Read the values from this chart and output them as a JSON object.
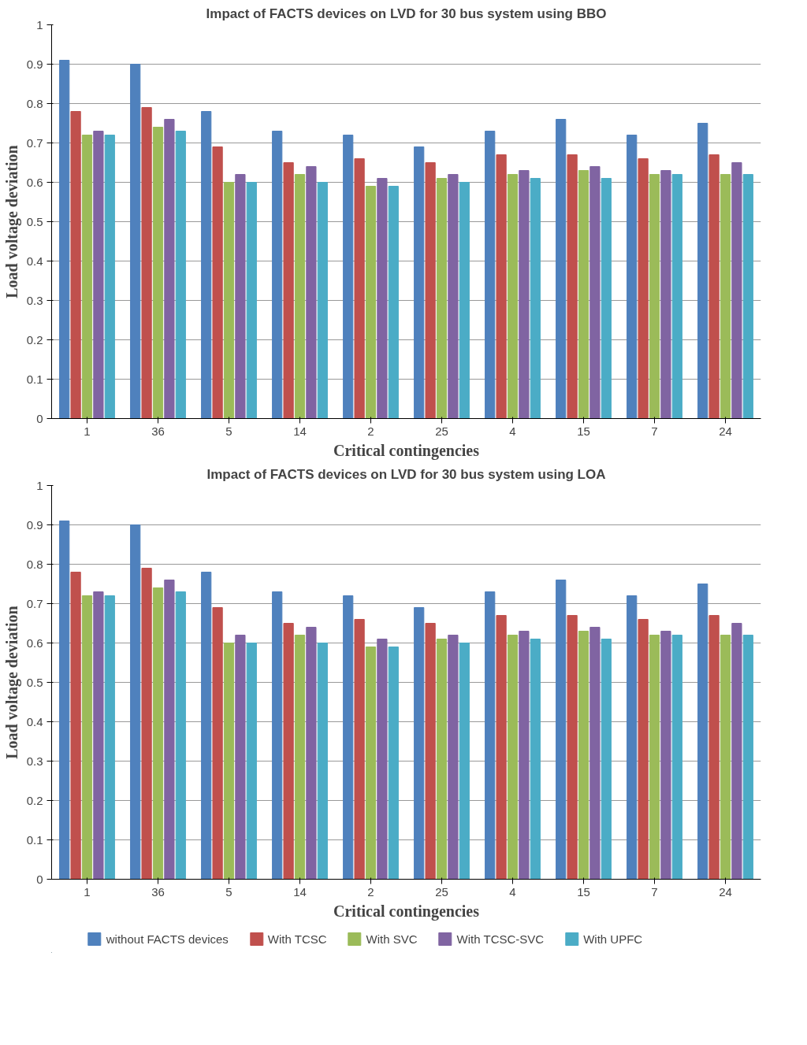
{
  "chart_data": [
    {
      "type": "bar",
      "title": "Impact of FACTS devices on LVD for 30 bus system using BBO",
      "xlabel": "Critical contingencies",
      "ylabel": "Load voltage deviation",
      "categories": [
        "1",
        "36",
        "5",
        "14",
        "2",
        "25",
        "4",
        "15",
        "7",
        "24"
      ],
      "series": [
        {
          "color": "#4f81bd",
          "values": [
            0.91,
            0.9,
            0.78,
            0.73,
            0.72,
            0.69,
            0.73,
            0.76,
            0.72,
            0.75
          ]
        },
        {
          "color": "#c0504d",
          "values": [
            0.78,
            0.79,
            0.69,
            0.65,
            0.66,
            0.65,
            0.67,
            0.67,
            0.66,
            0.67
          ]
        },
        {
          "color": "#9bbb59",
          "values": [
            0.72,
            0.74,
            0.6,
            0.62,
            0.59,
            0.61,
            0.62,
            0.63,
            0.62,
            0.62
          ]
        },
        {
          "color": "#8064a2",
          "values": [
            0.73,
            0.76,
            0.62,
            0.64,
            0.61,
            0.62,
            0.63,
            0.64,
            0.63,
            0.65
          ]
        },
        {
          "color": "#4bacc6",
          "values": [
            0.72,
            0.73,
            0.6,
            0.6,
            0.59,
            0.6,
            0.61,
            0.61,
            0.62,
            0.62
          ]
        }
      ],
      "ylim": [
        0,
        1
      ],
      "yticks": [
        0,
        0.1,
        0.2,
        0.3,
        0.4,
        0.5,
        0.6,
        0.7,
        0.8,
        0.9,
        1
      ],
      "grid": "y"
    },
    {
      "type": "bar",
      "title": "Impact of FACTS devices on LVD for 30 bus system using LOA",
      "xlabel": "Critical contingencies",
      "ylabel": "Load voltage deviation",
      "categories": [
        "1",
        "36",
        "5",
        "14",
        "2",
        "25",
        "4",
        "15",
        "7",
        "24"
      ],
      "series": [
        {
          "name": "without FACTS devices",
          "color": "#4f81bd",
          "values": [
            0.91,
            0.9,
            0.78,
            0.73,
            0.72,
            0.69,
            0.73,
            0.76,
            0.72,
            0.75
          ]
        },
        {
          "name": "With TCSC",
          "color": "#c0504d",
          "values": [
            0.78,
            0.79,
            0.69,
            0.65,
            0.66,
            0.65,
            0.67,
            0.67,
            0.66,
            0.67
          ]
        },
        {
          "name": "With SVC",
          "color": "#9bbb59",
          "values": [
            0.72,
            0.74,
            0.6,
            0.62,
            0.59,
            0.61,
            0.62,
            0.63,
            0.62,
            0.62
          ]
        },
        {
          "name": "With TCSC-SVC",
          "color": "#8064a2",
          "values": [
            0.73,
            0.76,
            0.62,
            0.64,
            0.61,
            0.62,
            0.63,
            0.64,
            0.63,
            0.65
          ]
        },
        {
          "name": "With UPFC",
          "color": "#4bacc6",
          "values": [
            0.72,
            0.73,
            0.6,
            0.6,
            0.59,
            0.6,
            0.61,
            0.61,
            0.62,
            0.62
          ]
        }
      ],
      "ylim": [
        0,
        1
      ],
      "yticks": [
        0,
        0.1,
        0.2,
        0.3,
        0.4,
        0.5,
        0.6,
        0.7,
        0.8,
        0.9,
        1
      ],
      "grid": "y",
      "legend": "bottom"
    }
  ]
}
